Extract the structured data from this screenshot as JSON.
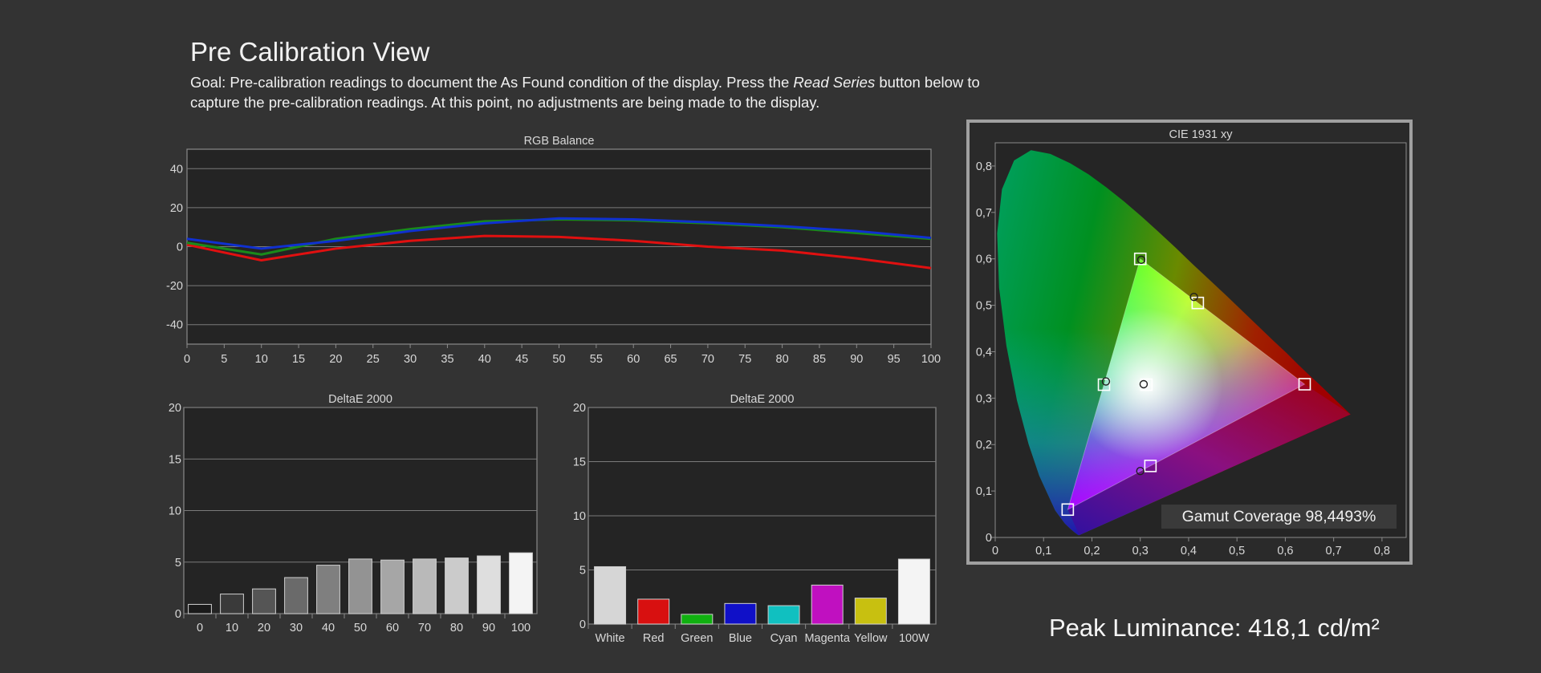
{
  "page": {
    "title": "Pre Calibration View",
    "goal_prefix": "Goal: Pre-calibration readings to document the As Found condition of the display. Press the ",
    "goal_emphasis": "Read Series",
    "goal_suffix": " button below to capture the pre-calibration readings. At this point, no adjustments are being made to the display.",
    "peak_luminance": "Peak Luminance: 418,1 cd/m²"
  },
  "colors": {
    "red_series": "#e01010",
    "green_series": "#1a8a1a",
    "blue_series": "#1030d0"
  },
  "chart_data": [
    {
      "id": "rgb-balance",
      "type": "line",
      "title": "RGB Balance",
      "x": [
        0,
        10,
        20,
        30,
        40,
        50,
        60,
        70,
        80,
        90,
        100
      ],
      "xticks": [
        "0",
        "5",
        "10",
        "15",
        "20",
        "25",
        "30",
        "35",
        "40",
        "45",
        "50",
        "55",
        "60",
        "65",
        "70",
        "75",
        "80",
        "85",
        "90",
        "95",
        "100"
      ],
      "yticks": [
        "40",
        "20",
        "0",
        "-20",
        "-40"
      ],
      "xlim": [
        0,
        100
      ],
      "ylim": [
        -50,
        50
      ],
      "series": [
        {
          "color": "#e01010",
          "values": [
            1,
            -7,
            -1,
            3,
            5.5,
            5,
            3,
            0,
            -2,
            -6,
            -11
          ]
        },
        {
          "color": "#1a8a1a",
          "values": [
            2,
            -4,
            4,
            9,
            13,
            14,
            13.5,
            12,
            10,
            7,
            4
          ]
        },
        {
          "color": "#1030d0",
          "values": [
            4,
            -1,
            3,
            8,
            12,
            14.5,
            14,
            12.5,
            10.5,
            8,
            4.5
          ]
        }
      ]
    },
    {
      "id": "deltae-grayscale",
      "type": "bar",
      "title": "DeltaE 2000",
      "categories": [
        "0",
        "10",
        "20",
        "30",
        "40",
        "50",
        "60",
        "70",
        "80",
        "90",
        "100"
      ],
      "values": [
        0.9,
        1.9,
        2.4,
        3.5,
        4.7,
        5.3,
        5.2,
        5.3,
        5.4,
        5.6,
        5.9
      ],
      "bar_colors": [
        "#1a1a1a",
        "#3a3a3a",
        "#555555",
        "#6a6a6a",
        "#7f7f7f",
        "#939393",
        "#a6a6a6",
        "#b9b9b9",
        "#cbcbcb",
        "#dedede",
        "#f4f4f4"
      ],
      "yticks": [
        "20",
        "15",
        "10",
        "5",
        "0"
      ],
      "ylim": [
        0,
        20
      ]
    },
    {
      "id": "deltae-colors",
      "type": "bar",
      "title": "DeltaE 2000",
      "categories": [
        "White",
        "Red",
        "Green",
        "Blue",
        "Cyan",
        "Magenta",
        "Yellow",
        "100W"
      ],
      "values": [
        5.3,
        2.3,
        0.9,
        1.9,
        1.7,
        3.6,
        2.4,
        6.0
      ],
      "bar_colors": [
        "#d6d6d6",
        "#d81010",
        "#10b010",
        "#1010c8",
        "#10c0c0",
        "#c010c0",
        "#c8c010",
        "#f4f4f4"
      ],
      "yticks": [
        "20",
        "15",
        "10",
        "5",
        "0"
      ],
      "ylim": [
        0,
        20
      ]
    },
    {
      "id": "cie-1931",
      "type": "scatter",
      "title": "CIE 1931 xy",
      "xticks": [
        "0",
        "0,1",
        "0,2",
        "0,3",
        "0,4",
        "0,5",
        "0,6",
        "0,7",
        "0,8"
      ],
      "yticks": [
        "0,8",
        "0,7",
        "0,6",
        "0,5",
        "0,4",
        "0,3",
        "0,2",
        "0,1",
        "0"
      ],
      "xlim": [
        0,
        0.85
      ],
      "ylim": [
        0,
        0.85
      ],
      "targets": [
        {
          "name": "Red",
          "x": 0.64,
          "y": 0.33
        },
        {
          "name": "Green",
          "x": 0.3,
          "y": 0.6
        },
        {
          "name": "Blue",
          "x": 0.15,
          "y": 0.06
        },
        {
          "name": "White",
          "x": 0.3127,
          "y": 0.329
        },
        {
          "name": "Cyan",
          "x": 0.225,
          "y": 0.329
        },
        {
          "name": "Magenta",
          "x": 0.321,
          "y": 0.154
        },
        {
          "name": "Yellow",
          "x": 0.419,
          "y": 0.505
        }
      ],
      "measured": [
        {
          "name": "Green",
          "x": 0.302,
          "y": 0.598
        },
        {
          "name": "White",
          "x": 0.307,
          "y": 0.33
        },
        {
          "name": "Cyan",
          "x": 0.229,
          "y": 0.336
        },
        {
          "name": "Magenta",
          "x": 0.3,
          "y": 0.143
        },
        {
          "name": "Yellow",
          "x": 0.411,
          "y": 0.518
        }
      ],
      "gamut_coverage": "Gamut Coverage 98,4493%"
    }
  ]
}
